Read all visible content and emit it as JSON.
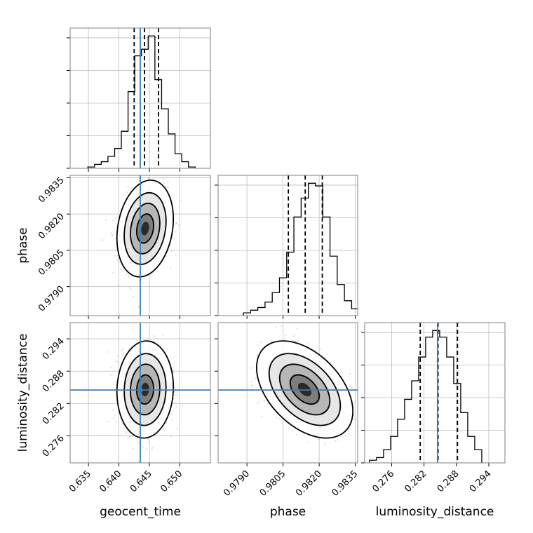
{
  "chart_data": {
    "type": "corner",
    "parameters": [
      "geocent_time",
      "phase",
      "luminosity_distance"
    ],
    "truth": {
      "geocent_time": 0.6435,
      "phase": null,
      "luminosity_distance": 0.2845
    },
    "truth_color": "#3a7fb5",
    "grid": true,
    "panels": [
      {
        "id": "hist-geocent_time",
        "kind": "histogram",
        "xlim": [
          0.632,
          0.655
        ],
        "xticks": [
          "0.635",
          "0.640",
          "0.645",
          "0.650"
        ],
        "xlabel": "",
        "quantiles": [
          0.6425,
          0.6442,
          0.6465
        ],
        "bin_edges": [
          0.6349,
          0.636,
          0.6371,
          0.6382,
          0.6393,
          0.6404,
          0.6415,
          0.6426,
          0.6437,
          0.6448,
          0.6459,
          0.647,
          0.6481,
          0.6492,
          0.6503,
          0.6514,
          0.6525
        ],
        "counts": [
          0.01,
          0.03,
          0.05,
          0.09,
          0.15,
          0.28,
          0.58,
          0.85,
          0.9,
          1.0,
          0.67,
          0.45,
          0.26,
          0.11,
          0.05,
          0.01
        ]
      },
      {
        "id": "hist-phase",
        "kind": "histogram",
        "xlim": [
          0.9778,
          0.9836
        ],
        "xticks": [],
        "xlabel": "",
        "quantiles": [
          0.98072,
          0.98142,
          0.98213
        ],
        "bin_edges": [
          0.97885,
          0.97915,
          0.97945,
          0.97975,
          0.98005,
          0.98035,
          0.98065,
          0.98095,
          0.98125,
          0.98155,
          0.98185,
          0.98215,
          0.98245,
          0.98275,
          0.98305,
          0.98335,
          0.98365
        ],
        "counts": [
          0.02,
          0.04,
          0.06,
          0.1,
          0.17,
          0.28,
          0.47,
          0.73,
          0.87,
          0.98,
          0.96,
          0.73,
          0.44,
          0.23,
          0.11,
          0.05
        ]
      },
      {
        "id": "hist-luminosity_distance",
        "kind": "histogram",
        "xlim": [
          0.271,
          0.297
        ],
        "xticks": [
          "0.276",
          "0.282",
          "0.288",
          "0.294"
        ],
        "xlabel": "luminosity_distance",
        "quantiles": [
          0.2813,
          0.2846,
          0.2882
        ],
        "bin_edges": [
          0.2719,
          0.2732,
          0.2745,
          0.2758,
          0.2771,
          0.2784,
          0.2797,
          0.281,
          0.2823,
          0.2836,
          0.2849,
          0.2862,
          0.2875,
          0.2888,
          0.2901,
          0.2914,
          0.2927
        ],
        "counts": [
          0.02,
          0.04,
          0.1,
          0.2,
          0.33,
          0.48,
          0.62,
          0.8,
          0.95,
          1.0,
          0.95,
          0.8,
          0.6,
          0.38,
          0.2,
          0.1
        ]
      },
      {
        "id": "contour-geocent_time-phase",
        "kind": "density",
        "xlim": [
          0.632,
          0.655
        ],
        "ylim": [
          0.9778,
          0.9836
        ],
        "xticks": [],
        "yticks": [
          "0.9790",
          "0.9805",
          "0.9820",
          "0.9835"
        ],
        "ylabel": "phase",
        "center": [
          0.6443,
          0.9814
        ],
        "sigma": [
          0.00185,
          0.0008
        ],
        "corr": 0.2
      },
      {
        "id": "contour-geocent_time-luminosity_distance",
        "kind": "density",
        "xlim": [
          0.632,
          0.655
        ],
        "ylim": [
          0.271,
          0.297
        ],
        "xticks": [
          "0.635",
          "0.640",
          "0.645",
          "0.650"
        ],
        "yticks": [
          "0.276",
          "0.282",
          "0.288",
          "0.294"
        ],
        "xlabel": "geocent_time",
        "ylabel": "luminosity_distance",
        "center": [
          0.6443,
          0.2846
        ],
        "sigma": [
          0.00185,
          0.0036
        ],
        "corr": 0.05
      },
      {
        "id": "contour-phase-luminosity_distance",
        "kind": "density",
        "xlim": [
          0.9778,
          0.9836
        ],
        "ylim": [
          0.271,
          0.297
        ],
        "xticks": [
          "0.9790",
          "0.9805",
          "0.9820",
          "0.9835"
        ],
        "xlabel": "phase",
        "center": [
          0.9814,
          0.2846
        ],
        "sigma": [
          0.0008,
          0.0036
        ],
        "corr": -0.45
      }
    ]
  }
}
